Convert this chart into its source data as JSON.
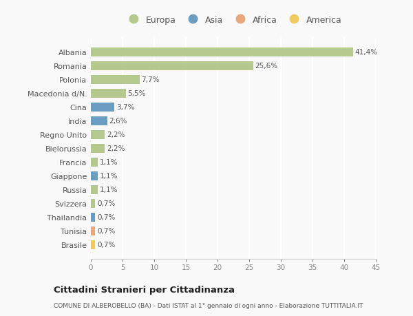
{
  "categories": [
    "Albania",
    "Romania",
    "Polonia",
    "Macedonia d/N.",
    "Cina",
    "India",
    "Regno Unito",
    "Bielorussia",
    "Francia",
    "Giappone",
    "Russia",
    "Svizzera",
    "Thailandia",
    "Tunisia",
    "Brasile"
  ],
  "values": [
    41.4,
    25.6,
    7.7,
    5.5,
    3.7,
    2.6,
    2.2,
    2.2,
    1.1,
    1.1,
    1.1,
    0.7,
    0.7,
    0.7,
    0.7
  ],
  "labels": [
    "41,4%",
    "25,6%",
    "7,7%",
    "5,5%",
    "3,7%",
    "2,6%",
    "2,2%",
    "2,2%",
    "1,1%",
    "1,1%",
    "1,1%",
    "0,7%",
    "0,7%",
    "0,7%",
    "0,7%"
  ],
  "continents": [
    "Europa",
    "Europa",
    "Europa",
    "Europa",
    "Asia",
    "Asia",
    "Europa",
    "Europa",
    "Europa",
    "Asia",
    "Europa",
    "Europa",
    "Asia",
    "Africa",
    "America"
  ],
  "continent_colors": {
    "Europa": "#b5c98e",
    "Asia": "#6b9dc2",
    "Africa": "#e8a87c",
    "America": "#f0cc60"
  },
  "legend_order": [
    "Europa",
    "Asia",
    "Africa",
    "America"
  ],
  "title": "Cittadini Stranieri per Cittadinanza",
  "subtitle": "COMUNE DI ALBEROBELLO (BA) - Dati ISTAT al 1° gennaio di ogni anno - Elaborazione TUTTITALIA.IT",
  "xlim": [
    0,
    45
  ],
  "xticks": [
    0,
    5,
    10,
    15,
    20,
    25,
    30,
    35,
    40,
    45
  ],
  "background_color": "#f9f9f9",
  "grid_color": "#ffffff",
  "bar_height": 0.65
}
